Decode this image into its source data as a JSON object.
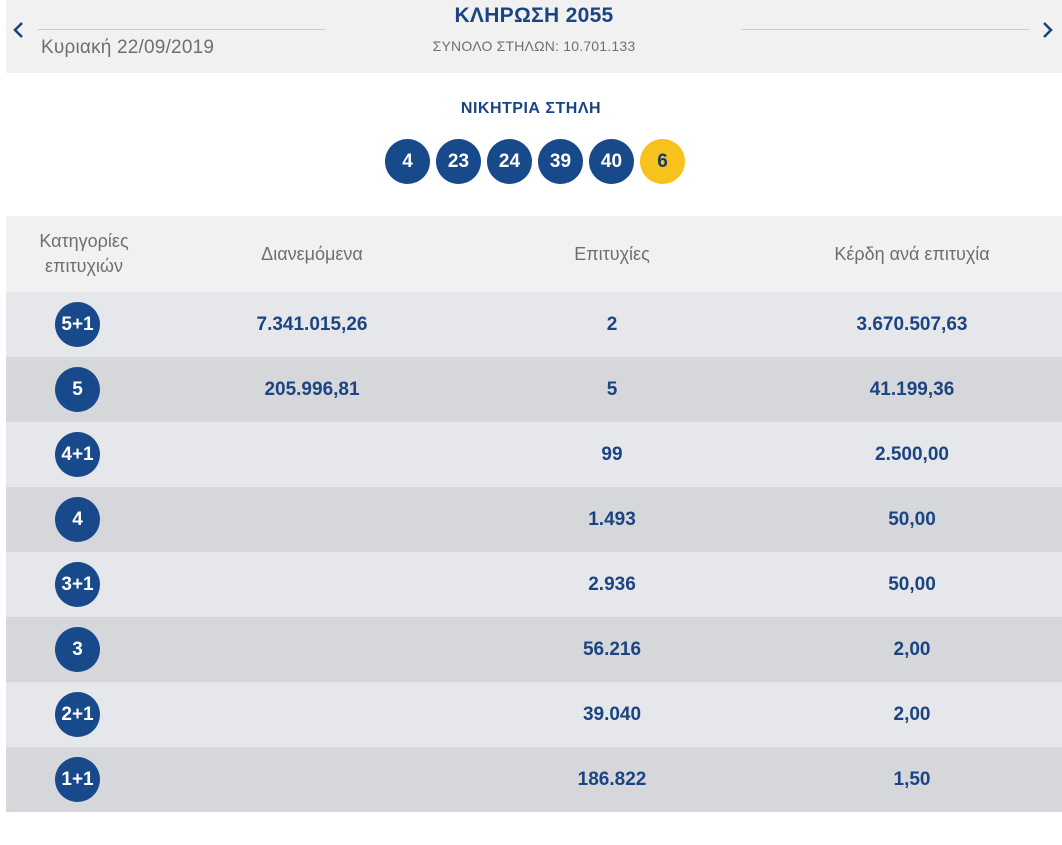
{
  "header": {
    "date": "Κυριακή 22/09/2019",
    "title": "ΚΛΗΡΩΣΗ 2055",
    "total_columns": "ΣΥΝΟΛΟ ΣΤΗΛΩΝ: 10.701.133",
    "prev_icon": "chevron-left-icon",
    "next_icon": "chevron-right-icon"
  },
  "winning": {
    "label": "ΝΙΚΗΤΡΙΑ ΣΤΗΛΗ",
    "numbers": [
      "4",
      "23",
      "24",
      "39",
      "40"
    ],
    "joker": "6"
  },
  "colors": {
    "primary": "#18498a",
    "joker": "#f6c21b",
    "row_light": "#e6e7ea",
    "row_dark": "#d6d7da"
  },
  "table": {
    "headers": {
      "category_line1": "Κατηγορίες",
      "category_line2": "επιτυχιών",
      "distributed": "Διανεμόμενα",
      "winners": "Επιτυχίες",
      "prize": "Κέρδη ανά επιτυχία"
    },
    "rows": [
      {
        "category": "5+1",
        "distributed": "7.341.015,26",
        "winners": "2",
        "prize": "3.670.507,63"
      },
      {
        "category": "5",
        "distributed": "205.996,81",
        "winners": "5",
        "prize": "41.199,36"
      },
      {
        "category": "4+1",
        "distributed": "",
        "winners": "99",
        "prize": "2.500,00"
      },
      {
        "category": "4",
        "distributed": "",
        "winners": "1.493",
        "prize": "50,00"
      },
      {
        "category": "3+1",
        "distributed": "",
        "winners": "2.936",
        "prize": "50,00"
      },
      {
        "category": "3",
        "distributed": "",
        "winners": "56.216",
        "prize": "2,00"
      },
      {
        "category": "2+1",
        "distributed": "",
        "winners": "39.040",
        "prize": "2,00"
      },
      {
        "category": "1+1",
        "distributed": "",
        "winners": "186.822",
        "prize": "1,50"
      }
    ]
  }
}
